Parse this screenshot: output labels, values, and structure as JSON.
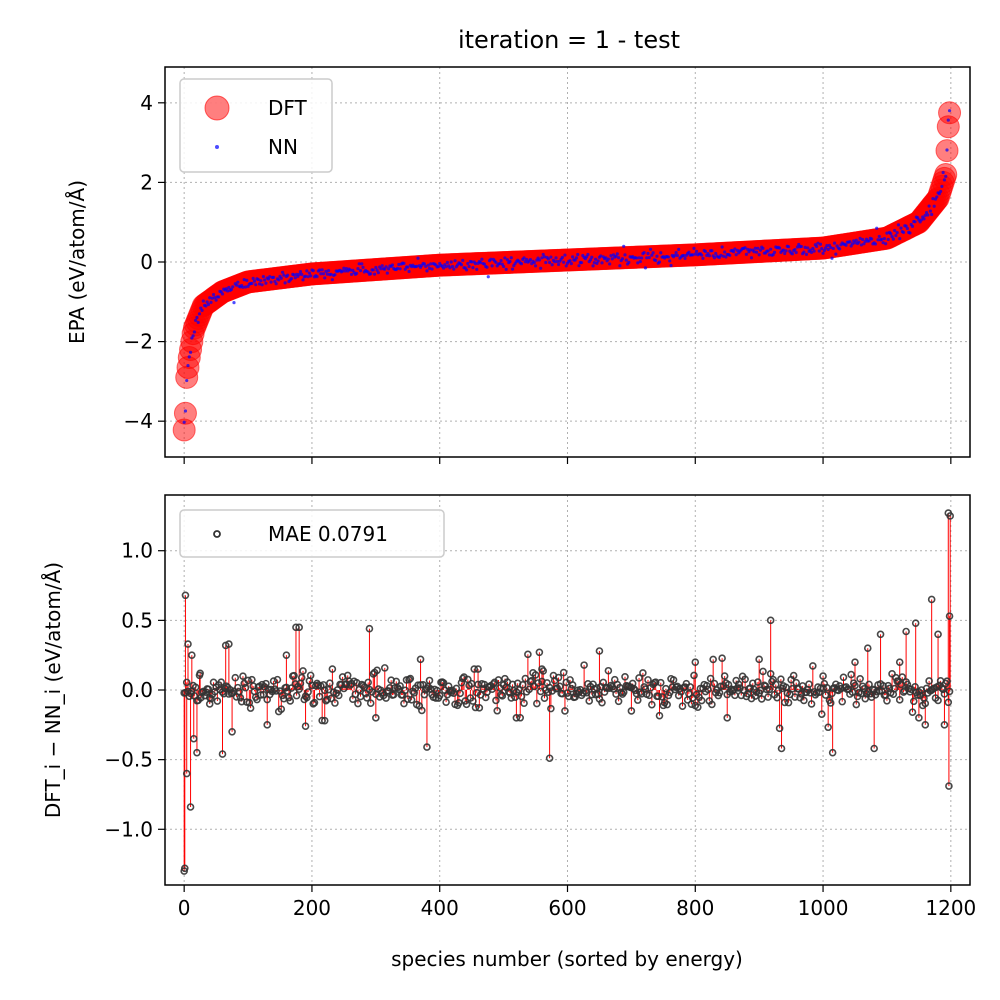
{
  "chart_data": [
    {
      "type": "scatter",
      "title": "iteration = 1 - test",
      "xlabel": "",
      "ylabel": "EPA (eV/atom/Å)",
      "xlim": [
        -30,
        1230
      ],
      "ylim": [
        -4.9,
        4.9
      ],
      "xticks": [
        0,
        200,
        400,
        600,
        800,
        1000,
        1200
      ],
      "yticks": [
        -4,
        -2,
        0,
        2,
        4
      ],
      "ytick_labels": [
        "−4",
        "−2",
        "0",
        "2",
        "4"
      ],
      "grid": true,
      "legend_position": "top-left",
      "series": [
        {
          "name": "DFT",
          "color": "#ff0000",
          "marker": "large circle",
          "n_points": 1200,
          "y_min": -4.22,
          "y_max": 4.05,
          "profile": [
            [
              0,
              -4.22
            ],
            [
              2,
              -3.8
            ],
            [
              4,
              -2.9
            ],
            [
              8,
              -2.4
            ],
            [
              15,
              -1.7
            ],
            [
              30,
              -1.1
            ],
            [
              60,
              -0.75
            ],
            [
              100,
              -0.5
            ],
            [
              200,
              -0.3
            ],
            [
              400,
              -0.08
            ],
            [
              600,
              0.05
            ],
            [
              800,
              0.18
            ],
            [
              1000,
              0.35
            ],
            [
              1100,
              0.6
            ],
            [
              1150,
              1.0
            ],
            [
              1180,
              1.6
            ],
            [
              1192,
              2.2
            ],
            [
              1196,
              3.4
            ],
            [
              1198,
              3.75
            ],
            [
              1199,
              4.05
            ]
          ]
        },
        {
          "name": "NN",
          "color": "#0000ff",
          "marker": "small dot",
          "noise": 0.07
        }
      ]
    },
    {
      "type": "scatter",
      "title": "",
      "xlabel": "species number (sorted by energy)",
      "ylabel": "DFT_i − NN_i (eV/atom/Å)",
      "xlim": [
        -30,
        1230
      ],
      "ylim": [
        -1.4,
        1.4
      ],
      "xticks": [
        0,
        200,
        400,
        600,
        800,
        1000,
        1200
      ],
      "xtick_labels": [
        "0",
        "200",
        "400",
        "600",
        "800",
        "1000",
        "1200"
      ],
      "yticks": [
        -1.0,
        -0.5,
        0.0,
        0.5,
        1.0
      ],
      "ytick_labels": [
        "−1.0",
        "−0.5",
        "0.0",
        "0.5",
        "1.0"
      ],
      "grid": true,
      "legend_position": "top-left",
      "series": [
        {
          "name": "MAE 0.0791",
          "color": "#333333",
          "marker": "open circle",
          "stem_color": "#ff0000",
          "sampled_points": 600,
          "highlights": [
            [
              0,
              -1.3
            ],
            [
              1,
              -1.28
            ],
            [
              2,
              0.68
            ],
            [
              4,
              -0.6
            ],
            [
              6,
              0.33
            ],
            [
              10,
              -0.84
            ],
            [
              12,
              0.25
            ],
            [
              15,
              -0.35
            ],
            [
              20,
              -0.45
            ],
            [
              25,
              0.12
            ],
            [
              40,
              -0.1
            ],
            [
              60,
              -0.46
            ],
            [
              65,
              0.32
            ],
            [
              70,
              0.33
            ],
            [
              75,
              -0.3
            ],
            [
              130,
              -0.25
            ],
            [
              160,
              0.25
            ],
            [
              175,
              0.45
            ],
            [
              180,
              0.45
            ],
            [
              190,
              -0.26
            ],
            [
              220,
              -0.22
            ],
            [
              290,
              0.44
            ],
            [
              300,
              -0.2
            ],
            [
              370,
              0.22
            ],
            [
              380,
              -0.41
            ],
            [
              460,
              0.15
            ],
            [
              520,
              -0.2
            ],
            [
              560,
              0.15
            ],
            [
              572,
              -0.49
            ],
            [
              650,
              0.28
            ],
            [
              700,
              -0.15
            ],
            [
              800,
              0.2
            ],
            [
              850,
              -0.2
            ],
            [
              900,
              0.22
            ],
            [
              918,
              0.5
            ],
            [
              935,
              -0.42
            ],
            [
              1000,
              0.1
            ],
            [
              1015,
              -0.45
            ],
            [
              1050,
              0.2
            ],
            [
              1070,
              0.3
            ],
            [
              1080,
              -0.42
            ],
            [
              1090,
              0.4
            ],
            [
              1120,
              0.2
            ],
            [
              1130,
              0.42
            ],
            [
              1145,
              0.48
            ],
            [
              1150,
              -0.2
            ],
            [
              1160,
              -0.25
            ],
            [
              1170,
              0.65
            ],
            [
              1180,
              0.4
            ],
            [
              1190,
              -0.25
            ],
            [
              1196,
              1.27
            ],
            [
              1197,
              -0.69
            ],
            [
              1198,
              0.53
            ],
            [
              1199,
              1.25
            ]
          ]
        }
      ]
    }
  ]
}
